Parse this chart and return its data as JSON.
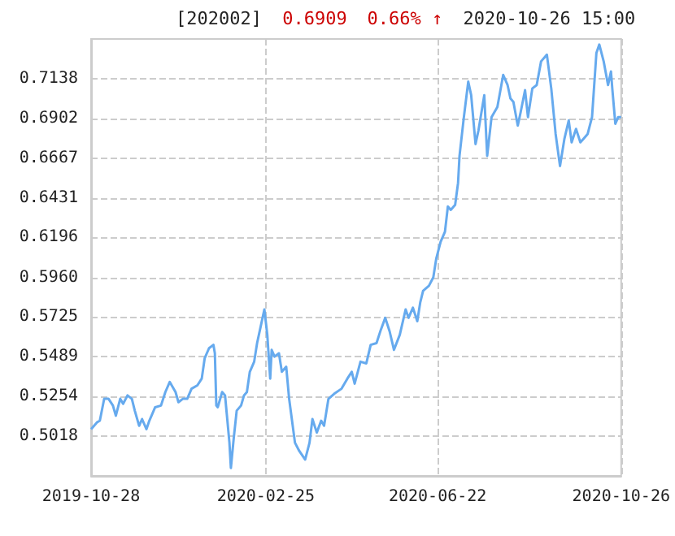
{
  "chart_data": {
    "type": "line",
    "annotations": [
      "[202002]",
      "0.6909",
      "0.66% ↑",
      "2020-10-26 15:00"
    ],
    "x": [
      "2019-10-28",
      "2019-11-01",
      "2019-11-03",
      "2019-11-06",
      "2019-11-09",
      "2019-11-12",
      "2019-11-14",
      "2019-11-17",
      "2019-11-19",
      "2019-11-22",
      "2019-11-25",
      "2019-11-27",
      "2019-11-30",
      "2019-12-02",
      "2019-12-05",
      "2019-12-07",
      "2019-12-11",
      "2019-12-15",
      "2019-12-18",
      "2019-12-21",
      "2019-12-25",
      "2019-12-27",
      "2019-12-30",
      "2020-01-02",
      "2020-01-05",
      "2020-01-09",
      "2020-01-12",
      "2020-01-14",
      "2020-01-17",
      "2020-01-20",
      "2020-01-21",
      "2020-01-22",
      "2020-01-23",
      "2020-01-26",
      "2020-01-28",
      "2020-01-31",
      "2020-02-01",
      "2020-02-03",
      "2020-02-05",
      "2020-02-08",
      "2020-02-10",
      "2020-02-12",
      "2020-02-14",
      "2020-02-17",
      "2020-02-19",
      "2020-02-21",
      "2020-02-24",
      "2020-02-26",
      "2020-02-28",
      "2020-02-29",
      "2020-03-02",
      "2020-03-05",
      "2020-03-07",
      "2020-03-10",
      "2020-03-12",
      "2020-03-16",
      "2020-03-19",
      "2020-03-23",
      "2020-03-26",
      "2020-03-28",
      "2020-03-31",
      "2020-04-03",
      "2020-04-05",
      "2020-04-08",
      "2020-04-12",
      "2020-04-17",
      "2020-04-21",
      "2020-04-24",
      "2020-04-26",
      "2020-04-30",
      "2020-05-04",
      "2020-05-07",
      "2020-05-11",
      "2020-05-14",
      "2020-05-17",
      "2020-05-20",
      "2020-05-23",
      "2020-05-27",
      "2020-05-31",
      "2020-06-02",
      "2020-06-05",
      "2020-06-08",
      "2020-06-10",
      "2020-06-12",
      "2020-06-16",
      "2020-06-19",
      "2020-06-21",
      "2020-06-24",
      "2020-06-27",
      "2020-06-29",
      "2020-07-01",
      "2020-07-04",
      "2020-07-06",
      "2020-07-07",
      "2020-07-10",
      "2020-07-13",
      "2020-07-15",
      "2020-07-18",
      "2020-07-20",
      "2020-07-24",
      "2020-07-26",
      "2020-07-29",
      "2020-08-02",
      "2020-08-06",
      "2020-08-09",
      "2020-08-11",
      "2020-08-13",
      "2020-08-16",
      "2020-08-18",
      "2020-08-21",
      "2020-08-23",
      "2020-08-26",
      "2020-08-29",
      "2020-09-01",
      "2020-09-05",
      "2020-09-08",
      "2020-09-11",
      "2020-09-14",
      "2020-09-17",
      "2020-09-20",
      "2020-09-22",
      "2020-09-25",
      "2020-09-28",
      "2020-09-30",
      "2020-10-03",
      "2020-10-06",
      "2020-10-09",
      "2020-10-11",
      "2020-10-14",
      "2020-10-17",
      "2020-10-19",
      "2020-10-20",
      "2020-10-22",
      "2020-10-24",
      "2020-10-26"
    ],
    "series": [
      {
        "color": "#66aaee",
        "values": [
          0.506,
          0.51,
          0.511,
          0.524,
          0.524,
          0.52,
          0.514,
          0.524,
          0.521,
          0.526,
          0.524,
          0.517,
          0.508,
          0.512,
          0.506,
          0.511,
          0.519,
          0.52,
          0.528,
          0.534,
          0.528,
          0.522,
          0.524,
          0.524,
          0.53,
          0.532,
          0.536,
          0.548,
          0.554,
          0.556,
          0.551,
          0.52,
          0.519,
          0.528,
          0.526,
          0.498,
          0.483,
          0.501,
          0.517,
          0.52,
          0.526,
          0.528,
          0.54,
          0.546,
          0.557,
          0.565,
          0.577,
          0.562,
          0.536,
          0.553,
          0.549,
          0.551,
          0.54,
          0.543,
          0.524,
          0.498,
          0.493,
          0.488,
          0.498,
          0.512,
          0.504,
          0.511,
          0.508,
          0.524,
          0.527,
          0.53,
          0.536,
          0.54,
          0.533,
          0.546,
          0.545,
          0.556,
          0.557,
          0.565,
          0.572,
          0.564,
          0.553,
          0.562,
          0.577,
          0.572,
          0.578,
          0.57,
          0.581,
          0.588,
          0.591,
          0.596,
          0.607,
          0.617,
          0.623,
          0.638,
          0.636,
          0.639,
          0.652,
          0.668,
          0.691,
          0.712,
          0.704,
          0.675,
          0.683,
          0.704,
          0.668,
          0.691,
          0.697,
          0.716,
          0.71,
          0.702,
          0.7,
          0.686,
          0.694,
          0.707,
          0.691,
          0.708,
          0.71,
          0.724,
          0.728,
          0.708,
          0.681,
          0.662,
          0.678,
          0.689,
          0.676,
          0.684,
          0.676,
          0.678,
          0.681,
          0.691,
          0.729,
          0.734,
          0.724,
          0.71,
          0.718,
          0.707,
          0.687,
          0.691,
          0.691
        ]
      }
    ],
    "xlim": [
      "2019-10-28",
      "2020-10-26"
    ],
    "xticks": [
      "2019-10-28",
      "2020-02-25",
      "2020-06-22",
      "2020-10-26"
    ],
    "ylim": [
      0.4783,
      0.7373
    ],
    "yticks": [
      0.5018,
      0.5254,
      0.5489,
      0.5725,
      {
        "value": 0.596,
        "label": "0.5960"
      },
      0.6196,
      0.6431,
      0.6667,
      0.6902,
      0.7138
    ],
    "grid": true,
    "marker": "none",
    "line_style": "solid"
  }
}
